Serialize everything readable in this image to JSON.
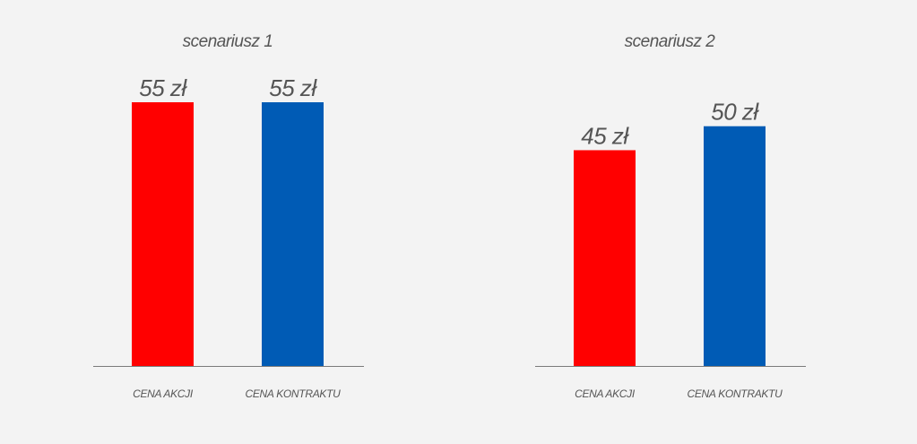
{
  "chart_data": [
    {
      "type": "bar",
      "title": "scenariusz 1",
      "categories": [
        "CENA AKCJI",
        "CENA KONTRAKTU"
      ],
      "values": [
        55,
        55
      ],
      "value_labels": [
        "55 zł",
        "55 zł"
      ],
      "colors": [
        "#ff0000",
        "#005bb5"
      ],
      "xlabel": "",
      "ylabel": "",
      "ylim": [
        0,
        55
      ],
      "grid": false
    },
    {
      "type": "bar",
      "title": "scenariusz 2",
      "categories": [
        "CENA AKCJI",
        "CENA KONTRAKTU"
      ],
      "values": [
        45,
        50
      ],
      "value_labels": [
        "45 zł",
        "50 zł"
      ],
      "colors": [
        "#ff0000",
        "#005bb5"
      ],
      "xlabel": "",
      "ylabel": "",
      "ylim": [
        0,
        55
      ],
      "grid": false
    }
  ]
}
